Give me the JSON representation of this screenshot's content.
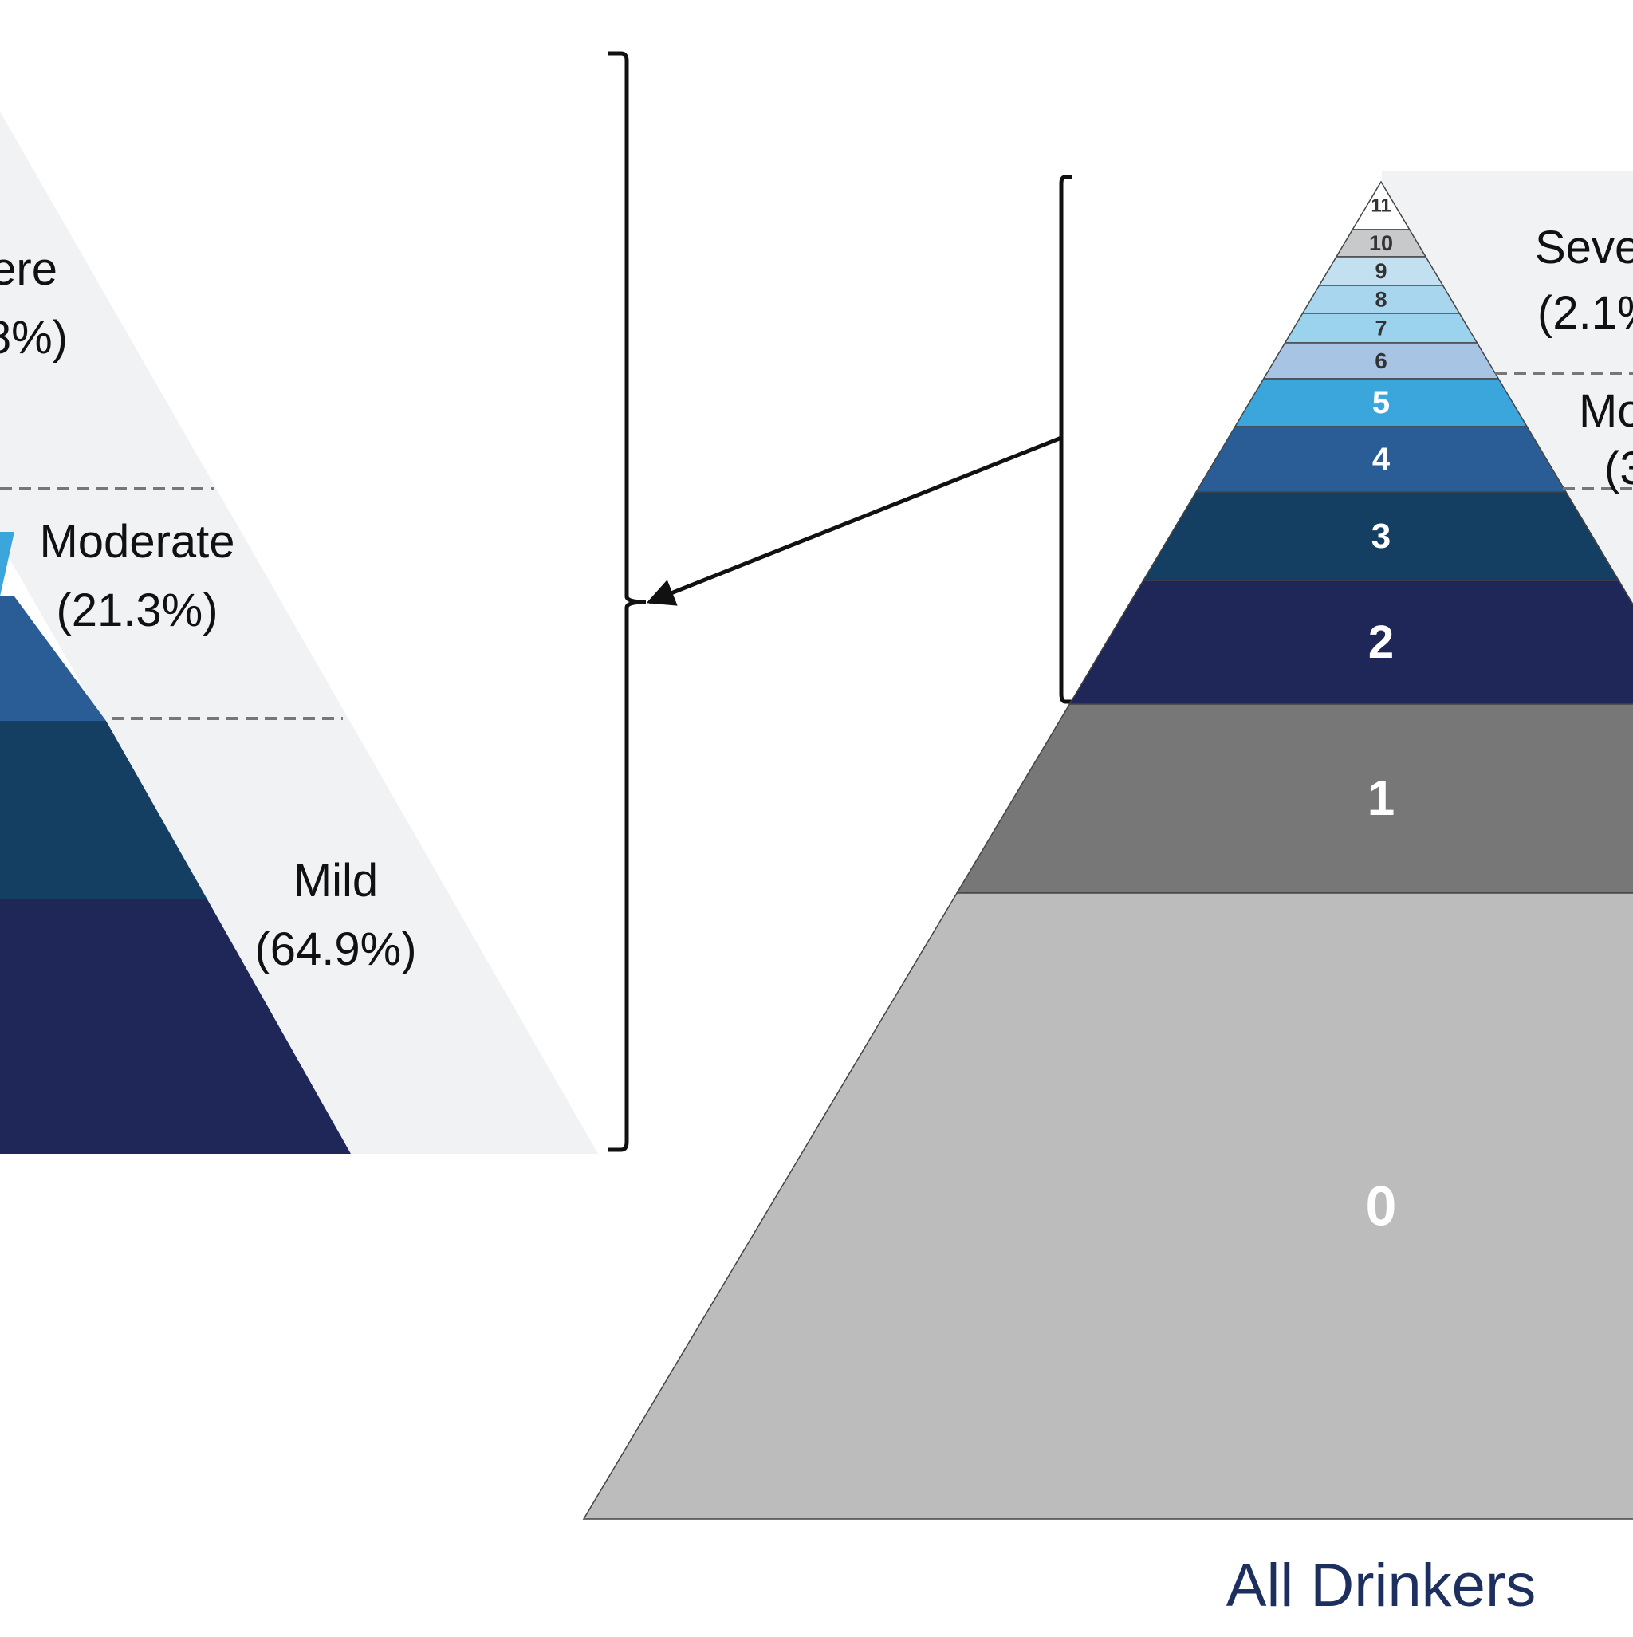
{
  "left_pyramid": {
    "labels": {
      "severe_name": "ere",
      "severe_pct": "8%)",
      "moderate_name": "Moderate",
      "moderate_pct": "(21.3%)",
      "mild_name": "Mild",
      "mild_pct": "(64.9%)"
    },
    "colors": {
      "panel": "#f1f2f4",
      "moderate_light": "#3aa6dc",
      "level4": "#2a5d96",
      "level3": "#143f62",
      "level2": "#1f2658"
    }
  },
  "right_pyramid": {
    "caption": "All Drinkers",
    "labels": {
      "severe_name": "Seve",
      "severe_pct": "(2.1%",
      "moderate_name": "Mo",
      "moderate_pct": "(3"
    },
    "levels": [
      {
        "label": "11",
        "color": "#ffffff"
      },
      {
        "label": "10",
        "color": "#c8c9cb"
      },
      {
        "label": "9",
        "color": "#c3e0f0"
      },
      {
        "label": "8",
        "color": "#a9d6ef"
      },
      {
        "label": "7",
        "color": "#9bd2ee"
      },
      {
        "label": "6",
        "color": "#a7c4e5"
      },
      {
        "label": "5",
        "color": "#3aa6dc"
      },
      {
        "label": "4",
        "color": "#2a5d96"
      },
      {
        "label": "3",
        "color": "#143f62"
      },
      {
        "label": "2",
        "color": "#1f2658"
      },
      {
        "label": "1",
        "color": "#777777"
      },
      {
        "label": "0",
        "color": "#bdbcbd"
      }
    ]
  }
}
